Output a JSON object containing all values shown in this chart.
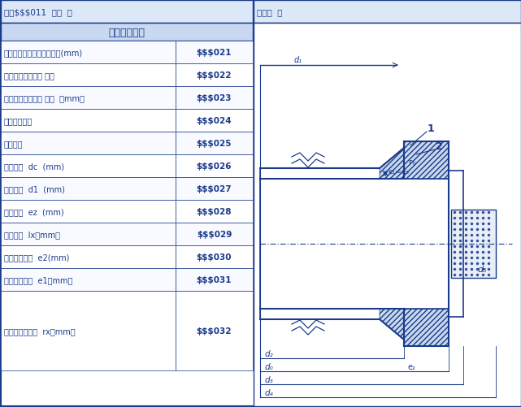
{
  "title_left": "法兰$$$011  数据  ：",
  "title_right": "示意图  ：",
  "subtitle": "整体带颈法兰",
  "table_rows": [
    [
      "与法兰连接的壳体有效厚度(mm)",
      "$$$021"
    ],
    [
      "与法兰连接的壳体 材料",
      "$$$022"
    ],
    [
      "与法兰连接的壳体 内径  （mm）",
      "$$$023"
    ],
    [
      "法兰材料类型",
      "$$$024"
    ],
    [
      "法兰材料",
      "$$$025"
    ],
    [
      "法兰内径  dc  (mm)",
      "$$$026"
    ],
    [
      "法兰外径  d1  (mm)",
      "$$$027"
    ],
    [
      "法兰厚度  ez  (mm)",
      "$$$028"
    ],
    [
      "锥颈高度  lx（mm）",
      "$$$029"
    ],
    [
      "锥颈大端厚度  e2(mm)",
      "$$$030"
    ],
    [
      "锥颈小端厚度  e1（mm）",
      "$$$031"
    ]
  ],
  "last_row_label": "锥颈外圆角半径  rx（mm）",
  "last_row_value": "$$$032",
  "bg_color": "#f0f4ff",
  "header_bg": "#c8d8f0",
  "border_color": "#1a3a8a",
  "text_color": "#1a3a8a",
  "light_bg": "#dce8f8"
}
